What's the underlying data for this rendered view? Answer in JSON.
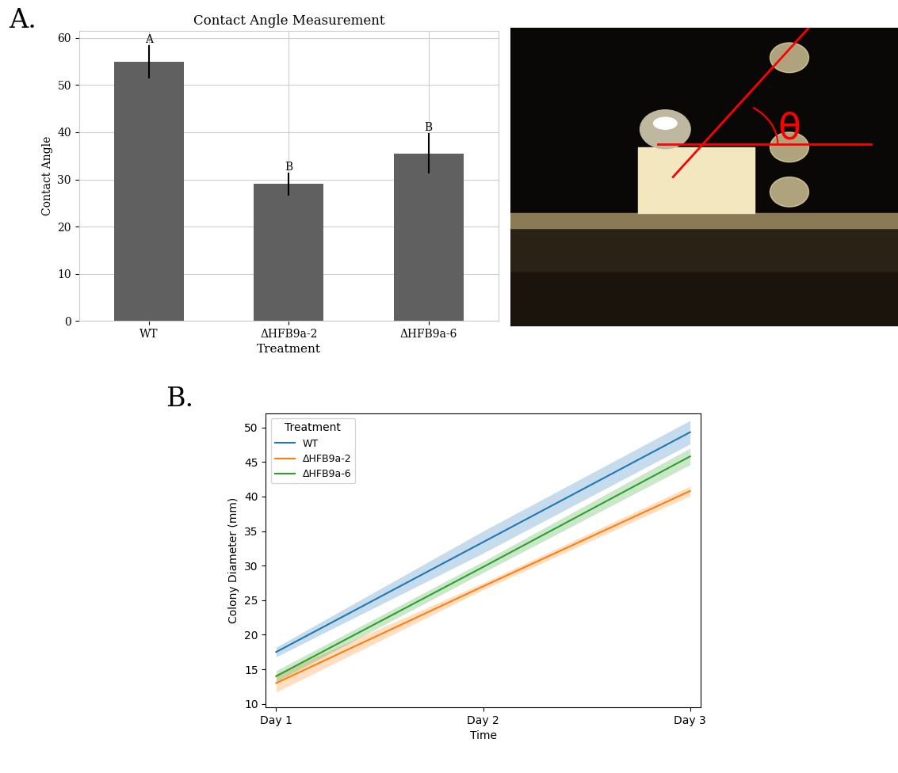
{
  "chart_data": [
    {
      "type": "bar",
      "title": "Contact Angle Measurement",
      "x_label": "Treatment",
      "y_label": "Contact Angle",
      "categories": [
        "WT",
        "ΔHFB9a-2",
        "ΔHFB9a-6"
      ],
      "values": [
        55,
        29,
        35.5
      ],
      "error": [
        3.5,
        2.5,
        4.3
      ],
      "annotations": [
        "A",
        "B",
        "B"
      ],
      "color": "#606060",
      "ylim": [
        0,
        61.5
      ],
      "yticks": [
        0,
        10,
        20,
        30,
        40,
        50,
        60
      ],
      "grid": true
    },
    {
      "type": "line",
      "x_label": "Time",
      "y_label": "Colony Diameter (mm)",
      "legend_title": "Treatment",
      "legend": "upper left",
      "categories": [
        "Day 1",
        "Day 2",
        "Day 3"
      ],
      "series": [
        {
          "name": "WT",
          "color": "#1f77b4",
          "values": [
            17.5,
            33.4,
            49.3
          ],
          "error": [
            0.7,
            1.6,
            1.7
          ]
        },
        {
          "name": "ΔHFB9a-2",
          "color": "#ff7f0e",
          "values": [
            13.0,
            27.0,
            40.8
          ],
          "error": [
            1.3,
            0.5,
            0.7
          ]
        },
        {
          "name": "ΔHFB9a-6",
          "color": "#2ca02c",
          "values": [
            14.0,
            29.8,
            45.8
          ],
          "error": [
            0.8,
            0.8,
            1.2
          ]
        }
      ],
      "ylim": [
        9.5,
        52
      ],
      "yticks": [
        10,
        15,
        20,
        25,
        30,
        35,
        40,
        45,
        50
      ],
      "grid": false
    }
  ],
  "photo": {
    "angle_label": "θ"
  },
  "panel_labels": [
    "A.",
    "B."
  ]
}
